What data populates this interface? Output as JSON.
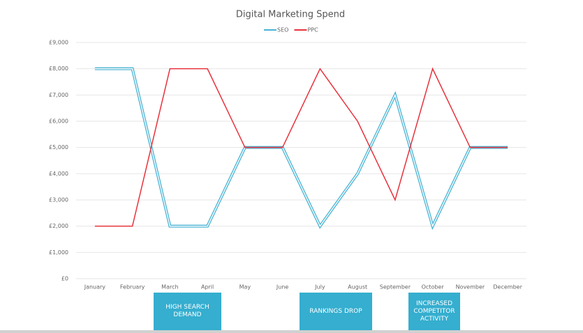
{
  "chart_data": {
    "type": "line",
    "title": "Digital Marketing Spend",
    "categories": [
      "January",
      "February",
      "March",
      "April",
      "May",
      "June",
      "July",
      "August",
      "September",
      "October",
      "November",
      "December"
    ],
    "series": [
      {
        "name": "SEO",
        "color": "#4ab3d4",
        "values": [
          8000,
          8000,
          2000,
          2000,
          5000,
          5000,
          2000,
          4000,
          7000,
          2000,
          5000,
          5000
        ]
      },
      {
        "name": "PPC",
        "color": "#e8323c",
        "values": [
          2000,
          2000,
          8000,
          8000,
          5000,
          5000,
          8000,
          6000,
          3000,
          8000,
          5000,
          5000
        ]
      }
    ],
    "ylim": [
      0,
      9000
    ],
    "yticks": [
      {
        "value": 0,
        "label": "£0"
      },
      {
        "value": 1000,
        "label": "£1,000"
      },
      {
        "value": 2000,
        "label": "£2,000"
      },
      {
        "value": 3000,
        "label": "£3,000"
      },
      {
        "value": 4000,
        "label": "£4,000"
      },
      {
        "value": 5000,
        "label": "£5,000"
      },
      {
        "value": 6000,
        "label": "£6,000"
      },
      {
        "value": 7000,
        "label": "£7,000"
      },
      {
        "value": 8000,
        "label": "£8,000"
      },
      {
        "value": 9000,
        "label": "£9,000"
      }
    ],
    "grid": true,
    "legend": "top",
    "annotations": [
      "HIGH SEARCH DEMAND",
      "RANKINGS DROP",
      "INCREASED COMPETITOR ACTIVITY"
    ]
  }
}
